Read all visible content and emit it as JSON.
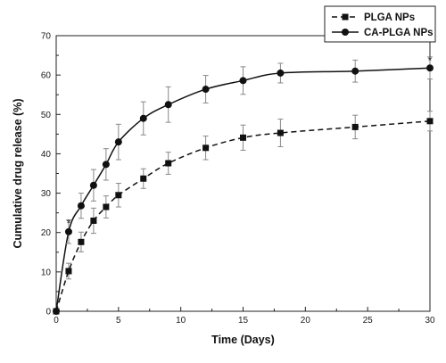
{
  "chart_data": {
    "type": "line",
    "xlabel": "Time (Days)",
    "ylabel": "Cumulative drug release (%)",
    "xlim": [
      0,
      30
    ],
    "ylim": [
      0,
      70
    ],
    "xticks": [
      0,
      5,
      10,
      15,
      20,
      25,
      30
    ],
    "yticks": [
      0,
      10,
      20,
      30,
      40,
      50,
      60,
      70
    ],
    "grid": false,
    "legend_position": "top-right",
    "series": [
      {
        "name": "PLGA NPs",
        "marker": "square",
        "line_style": "dashed",
        "x": [
          0,
          1,
          2,
          3,
          4,
          5,
          7,
          9,
          12,
          15,
          18,
          24,
          30
        ],
        "y": [
          0,
          10.2,
          17.6,
          23.0,
          26.5,
          29.5,
          33.7,
          37.6,
          41.5,
          44.1,
          45.3,
          46.8,
          48.3
        ],
        "error": [
          0,
          2.0,
          2.5,
          3.2,
          2.8,
          3.0,
          2.5,
          2.8,
          3.0,
          3.2,
          3.5,
          3.0,
          2.5
        ]
      },
      {
        "name": "CA-PLGA NPs",
        "marker": "circle",
        "line_style": "solid",
        "x": [
          0,
          1,
          2,
          3,
          4,
          5,
          7,
          9,
          12,
          15,
          18,
          24,
          30
        ],
        "y": [
          0,
          20.2,
          26.8,
          32.0,
          37.3,
          43.0,
          49.0,
          52.5,
          56.4,
          58.6,
          60.5,
          61.0,
          61.8
        ],
        "error": [
          0,
          3.0,
          3.2,
          4.0,
          4.0,
          4.5,
          4.2,
          4.5,
          3.5,
          3.5,
          2.5,
          2.8,
          2.8
        ]
      }
    ],
    "annotations": [
      {
        "text": "*",
        "x": 1,
        "y": 23.2
      },
      {
        "text": "*",
        "x": 30,
        "y": 64.6
      }
    ]
  }
}
